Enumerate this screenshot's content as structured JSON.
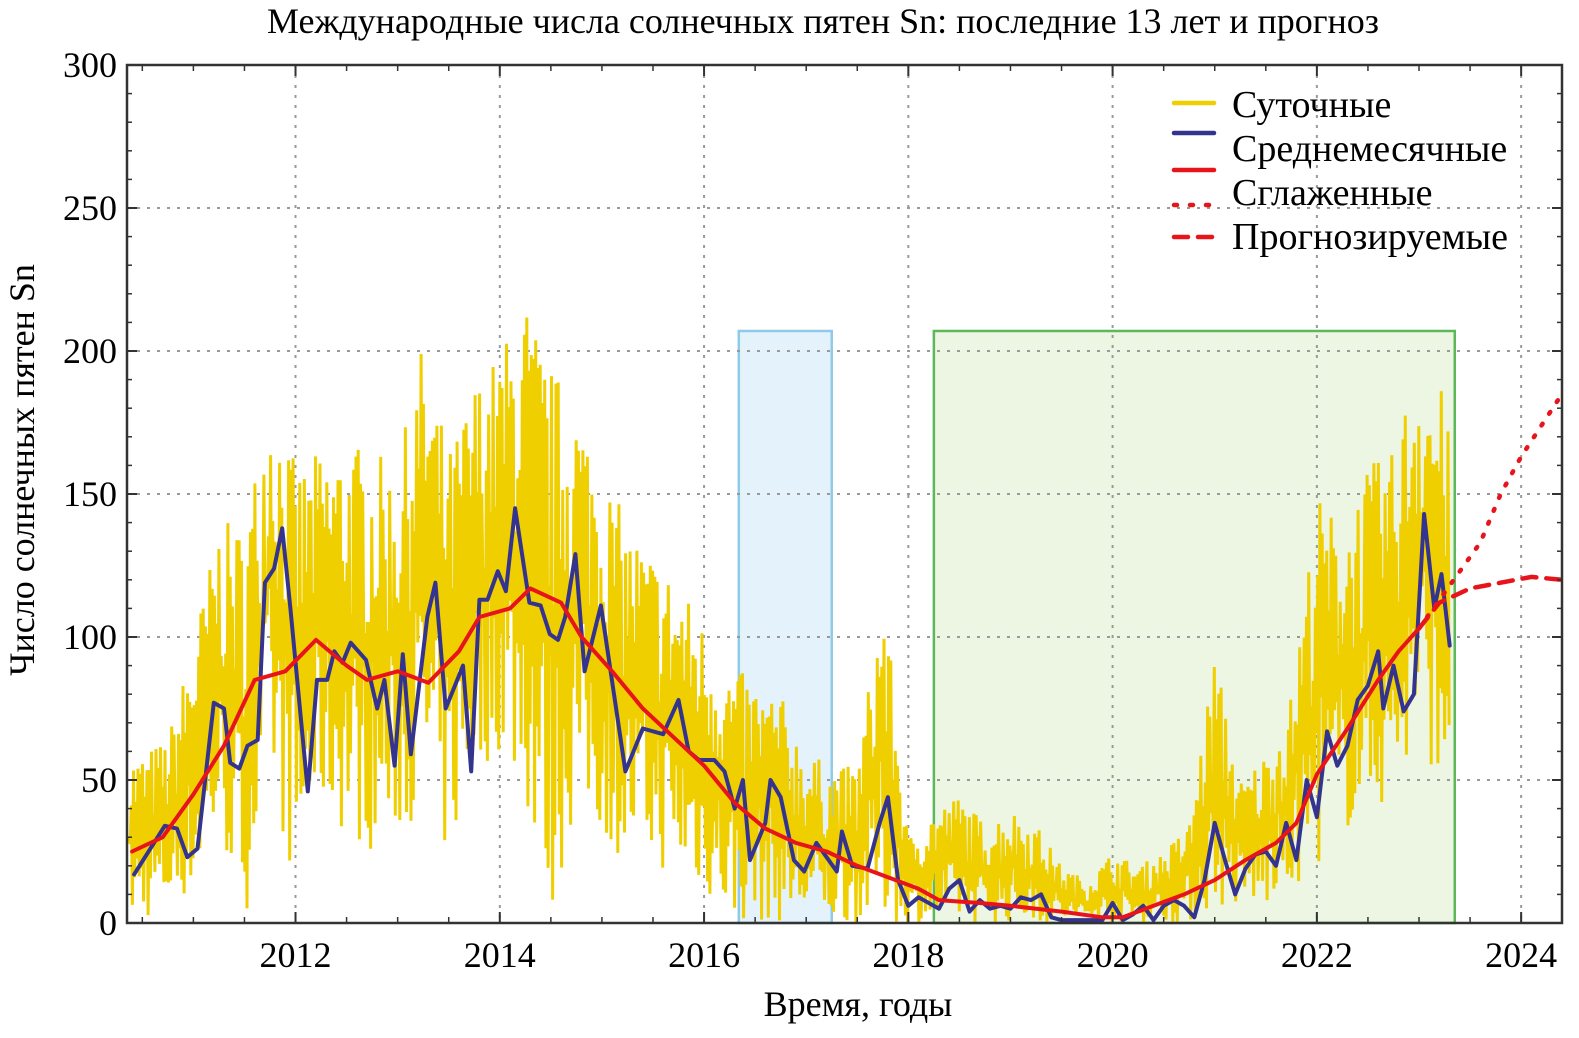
{
  "chart_data": {
    "type": "line",
    "title": "Международные числа солнечных пятен Sn: последние 13 лет и прогноз",
    "xlabel": "Время, годы",
    "ylabel": "Число солнечных пятен Sn",
    "xlim": [
      2010.35,
      2024.4
    ],
    "ylim": [
      0,
      300
    ],
    "xticks": [
      2012,
      2014,
      2016,
      2018,
      2020,
      2022,
      2024
    ],
    "yticks": [
      0,
      50,
      100,
      150,
      200,
      250,
      300
    ],
    "grid": true,
    "legend_placement": "top-right",
    "colors": {
      "daily": "#f0cf00",
      "monthly": "#34348f",
      "smoothed": "#e8141b",
      "highlight_blue_fill": "#e4f2fb",
      "highlight_blue_stroke": "#8fcbe8",
      "highlight_green_fill": "#edf5e3",
      "highlight_green_stroke": "#5db85a"
    },
    "highlight_regions": [
      {
        "x": [
          2016.34,
          2017.25
        ],
        "y": [
          0,
          207
        ],
        "color": "blue"
      },
      {
        "x": [
          2018.25,
          2023.35
        ],
        "y": [
          0,
          207
        ],
        "color": "green"
      }
    ],
    "series": [
      {
        "name": "Суточные",
        "style": "solid",
        "x": [
          2010.5,
          2010.75,
          2011.0,
          2011.25,
          2011.5,
          2011.75,
          2012.0,
          2012.25,
          2012.5,
          2012.75,
          2013.0,
          2013.25,
          2013.5,
          2013.75,
          2014.0,
          2014.25,
          2014.5,
          2014.75,
          2015.0,
          2015.25,
          2015.5,
          2015.75,
          2016.0,
          2016.25,
          2016.5,
          2016.75,
          2017.0,
          2017.25,
          2017.5,
          2017.75,
          2018.0,
          2018.25,
          2018.5,
          2018.75,
          2019.0,
          2019.25,
          2019.5,
          2019.75,
          2020.0,
          2020.25,
          2020.5,
          2020.75,
          2021.0,
          2021.25,
          2021.5,
          2021.75,
          2022.0,
          2022.25,
          2022.5,
          2022.75,
          2023.0,
          2023.25
        ],
        "high": [
          60,
          65,
          100,
          140,
          140,
          190,
          160,
          165,
          170,
          165,
          160,
          205,
          165,
          190,
          200,
          220,
          195,
          185,
          160,
          140,
          130,
          120,
          105,
          90,
          85,
          80,
          60,
          55,
          55,
          120,
          30,
          40,
          45,
          35,
          40,
          35,
          20,
          15,
          25,
          20,
          25,
          35,
          95,
          50,
          60,
          80,
          150,
          140,
          160,
          165,
          205,
          185
        ],
        "low": [
          0,
          5,
          10,
          30,
          0,
          50,
          10,
          40,
          30,
          25,
          30,
          40,
          20,
          50,
          60,
          40,
          0,
          40,
          30,
          20,
          20,
          15,
          10,
          0,
          0,
          0,
          0,
          0,
          0,
          0,
          0,
          0,
          0,
          0,
          0,
          0,
          0,
          0,
          0,
          0,
          0,
          0,
          5,
          5,
          5,
          10,
          20,
          30,
          40,
          40,
          60,
          50
        ]
      },
      {
        "name": "Среднемесячные",
        "style": "solid",
        "x": [
          2010.42,
          2010.72,
          2010.84,
          2010.94,
          2011.04,
          2011.2,
          2011.3,
          2011.36,
          2011.45,
          2011.53,
          2011.63,
          2011.7,
          2011.79,
          2011.87,
          2011.95,
          2012.12,
          2012.21,
          2012.31,
          2012.38,
          2012.46,
          2012.54,
          2012.69,
          2012.8,
          2012.87,
          2012.97,
          2013.05,
          2013.13,
          2013.29,
          2013.37,
          2013.47,
          2013.64,
          2013.72,
          2013.8,
          2013.88,
          2013.98,
          2014.06,
          2014.15,
          2014.29,
          2014.4,
          2014.49,
          2014.57,
          2014.64,
          2014.74,
          2014.83,
          2014.99,
          2015.23,
          2015.4,
          2015.6,
          2015.75,
          2015.85,
          2015.95,
          2016.1,
          2016.2,
          2016.3,
          2016.38,
          2016.45,
          2016.6,
          2016.65,
          2016.75,
          2016.88,
          2016.98,
          2017.1,
          2017.2,
          2017.3,
          2017.35,
          2017.45,
          2017.6,
          2017.72,
          2017.8,
          2017.9,
          2018.0,
          2018.1,
          2018.2,
          2018.3,
          2018.4,
          2018.5,
          2018.6,
          2018.7,
          2018.8,
          2018.9,
          2019.0,
          2019.1,
          2019.2,
          2019.3,
          2019.4,
          2019.5,
          2019.6,
          2019.7,
          2019.8,
          2019.9,
          2020.0,
          2020.1,
          2020.2,
          2020.3,
          2020.4,
          2020.5,
          2020.6,
          2020.7,
          2020.8,
          2020.9,
          2021.0,
          2021.1,
          2021.2,
          2021.3,
          2021.4,
          2021.5,
          2021.6,
          2021.7,
          2021.8,
          2021.9,
          2022.0,
          2022.1,
          2022.2,
          2022.3,
          2022.4,
          2022.5,
          2022.6,
          2022.65,
          2022.75,
          2022.85,
          2022.95,
          2023.05,
          2023.15,
          2023.22,
          2023.3
        ],
        "values": [
          17,
          34,
          33,
          23,
          26,
          77,
          75,
          56,
          54,
          62,
          64,
          119,
          124,
          138,
          110,
          46,
          85,
          85,
          95,
          91,
          98,
          92,
          75,
          85,
          55,
          94,
          59,
          107,
          119,
          75,
          90,
          53,
          113,
          113,
          123,
          116,
          145,
          112,
          111,
          101,
          99,
          107,
          129,
          88,
          111,
          53,
          68,
          66,
          78,
          60,
          57,
          57,
          53,
          40,
          50,
          22,
          35,
          50,
          44,
          22,
          18,
          28,
          23,
          18,
          32,
          20,
          19,
          35,
          44,
          15,
          6,
          9,
          7,
          5,
          12,
          15,
          4,
          8,
          5,
          6,
          5,
          9,
          8,
          10,
          2,
          1,
          1,
          1,
          1,
          1,
          7,
          1,
          3,
          6,
          1,
          6,
          8,
          6,
          2,
          15,
          35,
          22,
          10,
          19,
          24,
          25,
          20,
          35,
          22,
          50,
          37,
          67,
          55,
          62,
          78,
          83,
          95,
          75,
          90,
          74,
          80,
          143,
          110,
          122,
          97
        ]
      },
      {
        "name": "Сглаженные",
        "style": "solid",
        "x": [
          2010.4,
          2010.7,
          2011.0,
          2011.3,
          2011.6,
          2011.9,
          2012.2,
          2012.5,
          2012.7,
          2013.0,
          2013.3,
          2013.6,
          2013.8,
          2014.1,
          2014.3,
          2014.6,
          2014.8,
          2015.1,
          2015.4,
          2015.7,
          2016.0,
          2016.3,
          2016.6,
          2016.9,
          2017.2,
          2017.5,
          2017.8,
          2018.1,
          2018.3,
          2018.7,
          2019.0,
          2019.5,
          2019.9,
          2020.1,
          2020.4,
          2020.7,
          2021.0,
          2021.3,
          2021.6,
          2021.8,
          2022.0,
          2022.3,
          2022.6,
          2022.8,
          2023.0
        ],
        "values": [
          25,
          30,
          45,
          62,
          85,
          88,
          99,
          90,
          85,
          88,
          84,
          95,
          107,
          110,
          117,
          112,
          100,
          88,
          75,
          65,
          55,
          42,
          33,
          28,
          25,
          20,
          16,
          12,
          8,
          7,
          6,
          4,
          2,
          2,
          6,
          10,
          15,
          22,
          28,
          35,
          52,
          68,
          85,
          95,
          103
        ]
      },
      {
        "name": "Прогнозируемые",
        "style": "dotted",
        "x": [
          2023.0,
          2023.3,
          2023.6,
          2023.8,
          2024.0,
          2024.4
        ],
        "values": [
          103,
          118,
          133,
          150,
          163,
          185
        ]
      },
      {
        "name": "",
        "style": "dashed",
        "x": [
          2023.0,
          2023.2,
          2023.5,
          2023.8,
          2024.1,
          2024.4
        ],
        "values": [
          103,
          112,
          117,
          119,
          121,
          120
        ]
      }
    ],
    "legend": [
      "Суточные",
      "Среднемесячные",
      "Сглаженные",
      "Прогнозируемые"
    ]
  }
}
